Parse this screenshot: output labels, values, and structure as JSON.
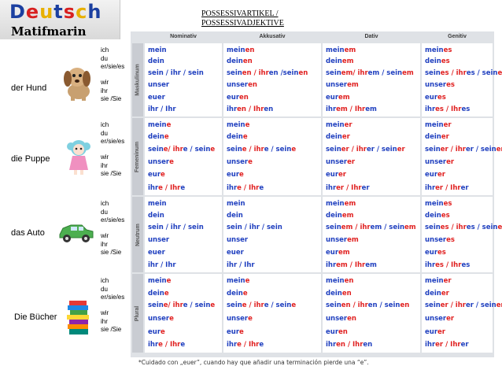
{
  "logo": {
    "letters": [
      {
        "ch": "D",
        "color": "#1b3fa0"
      },
      {
        "ch": "e",
        "color": "#d82020"
      },
      {
        "ch": "u",
        "color": "#e8b000"
      },
      {
        "ch": "t",
        "color": "#1b3fa0"
      },
      {
        "ch": "s",
        "color": "#d82020"
      },
      {
        "ch": "c",
        "color": "#e8b000"
      },
      {
        "ch": "h",
        "color": "#1b3fa0"
      }
    ],
    "subtitle": "Matifmarin"
  },
  "heading": {
    "line1": "POSSESSIVARTIKEL /",
    "line2": "POSSESSIVADJEKTIVE"
  },
  "columns": [
    "Nominativ",
    "Akkusativ",
    "Dativ",
    "Genitiv"
  ],
  "pronouns": [
    "ich",
    "du",
    "er/sie/es",
    "wir",
    "ihr",
    "sie /Sie"
  ],
  "rows": [
    {
      "noun": "der Hund",
      "icon": "dog-icon",
      "gender": "Maskulinum",
      "cells": [
        [
          [
            "mein",
            ""
          ],
          [
            "dein",
            ""
          ],
          [
            "sein / ihr / sein",
            ""
          ],
          [
            "unser",
            ""
          ],
          [
            "euer",
            ""
          ],
          [
            "ihr / Ihr",
            ""
          ]
        ],
        [
          [
            "mein",
            "en"
          ],
          [
            "dein",
            "en"
          ],
          [
            "sein",
            "en / ihr",
            "en /sein",
            "en"
          ],
          [
            "unser",
            "en"
          ],
          [
            "eur",
            "en"
          ],
          [
            "ihr",
            "en / Ihr",
            "en"
          ]
        ],
        [
          [
            "mein",
            "em"
          ],
          [
            "dein",
            "em"
          ],
          [
            "sein",
            "em/ ihr",
            "em / sein",
            "em"
          ],
          [
            "unser",
            "em"
          ],
          [
            "eur",
            "em"
          ],
          [
            "ihr",
            "em / Ihr",
            "em"
          ]
        ],
        [
          [
            "mein",
            "es"
          ],
          [
            "dein",
            "es"
          ],
          [
            "sein",
            "es / ihr",
            "es / sein",
            "es"
          ],
          [
            "unser",
            "es"
          ],
          [
            "eur",
            "es"
          ],
          [
            "ihr",
            "es / Ihr",
            "es"
          ]
        ]
      ]
    },
    {
      "noun": "die Puppe",
      "icon": "doll-icon",
      "gender": "Femeninum",
      "cells": [
        [
          [
            "mein",
            "e"
          ],
          [
            "dein",
            "e"
          ],
          [
            "sein",
            "e/ ihr",
            "e / sein",
            "e"
          ],
          [
            "unser",
            "e"
          ],
          [
            "eur",
            "e"
          ],
          [
            "ihr",
            "e / Ihr",
            "e"
          ]
        ],
        [
          [
            "mein",
            "e"
          ],
          [
            "dein",
            "e"
          ],
          [
            "sein",
            "e / ihr",
            "e / sein",
            "e"
          ],
          [
            "unser",
            "e"
          ],
          [
            "eur",
            "e"
          ],
          [
            "ihr",
            "e / Ihr",
            "e"
          ]
        ],
        [
          [
            "mein",
            "er"
          ],
          [
            "dein",
            "er"
          ],
          [
            "sein",
            "er / ihr",
            "er / sein",
            "er"
          ],
          [
            "unser",
            "er"
          ],
          [
            "eur",
            "er"
          ],
          [
            "ihr",
            "er / Ihr",
            "er"
          ]
        ],
        [
          [
            "mein",
            "er"
          ],
          [
            "dein",
            "er"
          ],
          [
            "sein",
            "er / ihr",
            "er / sein",
            "er"
          ],
          [
            "unser",
            "er"
          ],
          [
            "eur",
            "er"
          ],
          [
            "ihr",
            "er / Ihr",
            "er"
          ]
        ]
      ]
    },
    {
      "noun": "das Auto",
      "icon": "car-icon",
      "gender": "Neutrum",
      "cells": [
        [
          [
            "mein",
            ""
          ],
          [
            "dein",
            ""
          ],
          [
            "sein / ihr / sein",
            ""
          ],
          [
            "unser",
            ""
          ],
          [
            "euer",
            ""
          ],
          [
            "ihr / Ihr",
            ""
          ]
        ],
        [
          [
            "mein",
            ""
          ],
          [
            "dein",
            ""
          ],
          [
            "sein / ihr / sein",
            ""
          ],
          [
            "unser",
            ""
          ],
          [
            "euer",
            ""
          ],
          [
            "ihr / Ihr",
            ""
          ]
        ],
        [
          [
            "mein",
            "em"
          ],
          [
            "dein",
            "em"
          ],
          [
            "sein",
            "em / ihr",
            "em / sein",
            "em"
          ],
          [
            "unser",
            "em"
          ],
          [
            "eur",
            "em"
          ],
          [
            "ihr",
            "em / Ihr",
            "em"
          ]
        ],
        [
          [
            "mein",
            "es"
          ],
          [
            "dein",
            "es"
          ],
          [
            "sein",
            "es / ihr",
            "es / sein",
            "es"
          ],
          [
            "unser",
            "es"
          ],
          [
            "eur",
            "es"
          ],
          [
            "ihr",
            "es / Ihr",
            "es"
          ]
        ]
      ]
    },
    {
      "noun": "Die Bücher",
      "icon": "books-icon",
      "gender": "Plural",
      "cells": [
        [
          [
            "mein",
            "e"
          ],
          [
            "dein",
            "e"
          ],
          [
            "sein",
            "e/ ihr",
            "e / sein",
            "e"
          ],
          [
            "unser",
            "e"
          ],
          [
            "eur",
            "e"
          ],
          [
            "ihr",
            "e / Ihr",
            "e"
          ]
        ],
        [
          [
            "mein",
            "e"
          ],
          [
            "dein",
            "e"
          ],
          [
            "sein",
            "e / ihr",
            "e / sein",
            "e"
          ],
          [
            "unser",
            "e"
          ],
          [
            "eur",
            "e"
          ],
          [
            "ihr",
            "e / Ihr",
            "e"
          ]
        ],
        [
          [
            "mein",
            "en"
          ],
          [
            "dein",
            "en"
          ],
          [
            "sein",
            "en / ihr",
            "en / sein",
            "en"
          ],
          [
            "unser",
            "en"
          ],
          [
            "eur",
            "en"
          ],
          [
            "ihr",
            "en / Ihr",
            "en"
          ]
        ],
        [
          [
            "mein",
            "er"
          ],
          [
            "dein",
            "er"
          ],
          [
            "sein",
            "er / ihr",
            "er / sein",
            "er"
          ],
          [
            "unser",
            "er"
          ],
          [
            "eur",
            "er"
          ],
          [
            "ihr",
            "er / Ihr",
            "er"
          ]
        ]
      ]
    }
  ],
  "footnote": "*Cuidado con „euer”, cuando hay que añadir una terminación pierde una “e”.",
  "colors": {
    "stem": "#1f3fbf",
    "ending": "#e02020",
    "table_bg": "#dfe2e6"
  }
}
